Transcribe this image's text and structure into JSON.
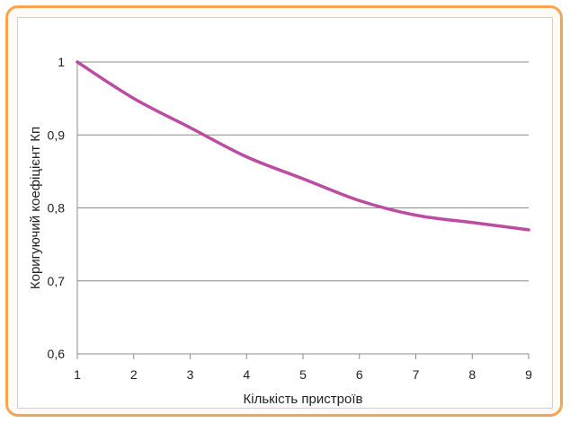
{
  "chart_data": {
    "type": "line",
    "title": "",
    "xlabel": "Кількість пристроїв",
    "ylabel": "Коригуючий коефіцієнт Кп",
    "x": [
      1,
      2,
      3,
      4,
      5,
      6,
      7,
      8,
      9
    ],
    "series": [
      {
        "values": [
          1.0,
          0.95,
          0.91,
          0.87,
          0.84,
          0.81,
          0.79,
          0.78,
          0.77
        ],
        "color": "#bb4ca1"
      }
    ],
    "xlim": [
      1,
      9
    ],
    "ylim": [
      0.6,
      1.0
    ],
    "xticks": [
      "1",
      "2",
      "3",
      "4",
      "5",
      "6",
      "7",
      "8",
      "9"
    ],
    "yticks": [
      "0,6",
      "0,7",
      "0,8",
      "0,9",
      "1"
    ],
    "ytick_values": [
      0.6,
      0.7,
      0.8,
      0.9,
      1.0
    ],
    "grid": true,
    "legend": "none",
    "colors": {
      "frame": "#f3a64f",
      "grid": "#8c8c8c",
      "line": "#bb4ca1"
    }
  }
}
